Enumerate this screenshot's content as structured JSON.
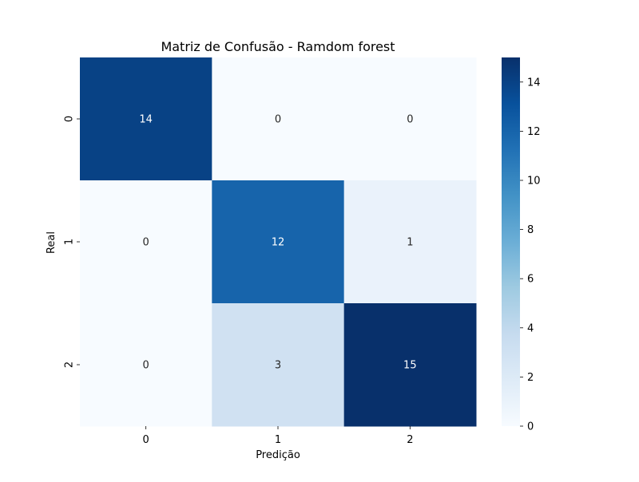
{
  "chart_data": {
    "type": "heatmap",
    "title": "Matriz de Confusão - Ramdom forest",
    "xlabel": "Predição",
    "ylabel": "Real",
    "x_categories": [
      "0",
      "1",
      "2"
    ],
    "y_categories": [
      "0",
      "1",
      "2"
    ],
    "values": [
      [
        14,
        0,
        0
      ],
      [
        0,
        12,
        1
      ],
      [
        0,
        3,
        15
      ]
    ],
    "colorbar": {
      "range": [
        0,
        15
      ],
      "ticks": [
        0,
        2,
        4,
        6,
        8,
        10,
        12,
        14
      ]
    },
    "colormap": "Blues",
    "colors": {
      "low": "#f7fbff",
      "high": "#08306b",
      "text_light": "#ffffff",
      "text_dark": "#262626",
      "axis": "#000000"
    }
  }
}
